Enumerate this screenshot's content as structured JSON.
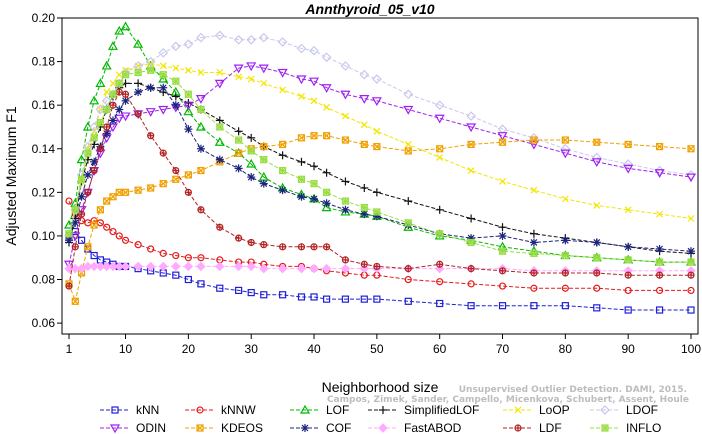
{
  "chart_data": {
    "type": "line",
    "title": "Annthyroid_05_v10",
    "xlabel": "Neighborhood size",
    "ylabel": "Adjusted Maximum F1",
    "xlim": [
      1,
      100
    ],
    "ylim": [
      0.055,
      0.2
    ],
    "x_ticks": [
      1,
      10,
      20,
      30,
      40,
      50,
      60,
      70,
      80,
      90,
      100
    ],
    "y_ticks": [
      "0.06",
      "0.08",
      "0.10",
      "0.12",
      "0.14",
      "0.16",
      "0.18",
      "0.20"
    ],
    "grid": false,
    "legend_position": "bottom",
    "credit": [
      "Unsupervised Outlier Detection. DAMI, 2015.",
      "Campos, Zimek, Sander, Campello, Micenkova, Schubert, Assent, Houle"
    ],
    "x": [
      1,
      2,
      3,
      4,
      5,
      6,
      7,
      8,
      9,
      10,
      12,
      14,
      16,
      18,
      20,
      22,
      25,
      28,
      30,
      32,
      35,
      38,
      40,
      42,
      45,
      48,
      50,
      55,
      60,
      65,
      70,
      75,
      80,
      85,
      90,
      95,
      100
    ],
    "series": [
      {
        "name": "kNN",
        "color": "#1f1fd6",
        "marker": "square",
        "values": [
          0.1,
          0.102,
          0.098,
          0.094,
          0.091,
          0.089,
          0.088,
          0.087,
          0.086,
          0.086,
          0.085,
          0.084,
          0.083,
          0.082,
          0.08,
          0.078,
          0.076,
          0.075,
          0.074,
          0.073,
          0.073,
          0.072,
          0.072,
          0.071,
          0.071,
          0.071,
          0.071,
          0.07,
          0.069,
          0.068,
          0.068,
          0.068,
          0.068,
          0.067,
          0.066,
          0.066,
          0.066
        ]
      },
      {
        "name": "kNNW",
        "color": "#e41a1c",
        "marker": "circle",
        "values": [
          0.116,
          0.11,
          0.107,
          0.106,
          0.107,
          0.106,
          0.104,
          0.102,
          0.1,
          0.098,
          0.096,
          0.094,
          0.092,
          0.091,
          0.09,
          0.09,
          0.089,
          0.088,
          0.088,
          0.087,
          0.086,
          0.086,
          0.085,
          0.084,
          0.083,
          0.082,
          0.082,
          0.08,
          0.079,
          0.078,
          0.077,
          0.076,
          0.076,
          0.076,
          0.075,
          0.075,
          0.075
        ]
      },
      {
        "name": "LOF",
        "color": "#00b800",
        "marker": "triangle-up",
        "values": [
          0.105,
          0.115,
          0.135,
          0.15,
          0.162,
          0.17,
          0.178,
          0.187,
          0.194,
          0.196,
          0.188,
          0.178,
          0.172,
          0.166,
          0.157,
          0.15,
          0.143,
          0.138,
          0.133,
          0.127,
          0.122,
          0.119,
          0.117,
          0.113,
          0.111,
          0.11,
          0.109,
          0.104,
          0.1,
          0.098,
          0.095,
          0.093,
          0.091,
          0.09,
          0.089,
          0.088,
          0.088
        ]
      },
      {
        "name": "SimplifiedLOF",
        "color": "#111111",
        "marker": "plus",
        "values": [
          0.097,
          0.108,
          0.125,
          0.135,
          0.142,
          0.15,
          0.158,
          0.164,
          0.168,
          0.17,
          0.17,
          0.168,
          0.166,
          0.164,
          0.161,
          0.158,
          0.153,
          0.148,
          0.145,
          0.141,
          0.137,
          0.134,
          0.132,
          0.129,
          0.125,
          0.122,
          0.12,
          0.116,
          0.112,
          0.108,
          0.104,
          0.101,
          0.099,
          0.097,
          0.095,
          0.093,
          0.092
        ]
      },
      {
        "name": "LoOP",
        "color": "#f2e600",
        "marker": "cross",
        "values": [
          0.1,
          0.112,
          0.125,
          0.14,
          0.148,
          0.158,
          0.166,
          0.17,
          0.174,
          0.176,
          0.178,
          0.179,
          0.178,
          0.177,
          0.176,
          0.175,
          0.175,
          0.173,
          0.172,
          0.17,
          0.167,
          0.164,
          0.162,
          0.159,
          0.155,
          0.151,
          0.148,
          0.142,
          0.136,
          0.13,
          0.125,
          0.121,
          0.117,
          0.114,
          0.112,
          0.11,
          0.108
        ]
      },
      {
        "name": "LDOF",
        "color": "#c8c8ee",
        "marker": "diamond",
        "values": [
          0.1,
          0.112,
          0.128,
          0.141,
          0.15,
          0.158,
          0.162,
          0.165,
          0.17,
          0.175,
          0.178,
          0.18,
          0.184,
          0.187,
          0.188,
          0.191,
          0.192,
          0.19,
          0.19,
          0.191,
          0.189,
          0.186,
          0.185,
          0.182,
          0.178,
          0.174,
          0.172,
          0.165,
          0.16,
          0.155,
          0.149,
          0.145,
          0.14,
          0.136,
          0.133,
          0.13,
          0.128
        ]
      },
      {
        "name": "ODIN",
        "color": "#a020f0",
        "marker": "triangle-down",
        "values": [
          0.087,
          0.1,
          0.112,
          0.12,
          0.13,
          0.138,
          0.145,
          0.15,
          0.154,
          0.155,
          0.156,
          0.157,
          0.158,
          0.159,
          0.16,
          0.163,
          0.17,
          0.177,
          0.178,
          0.177,
          0.175,
          0.172,
          0.171,
          0.168,
          0.165,
          0.163,
          0.162,
          0.158,
          0.154,
          0.15,
          0.146,
          0.142,
          0.138,
          0.134,
          0.131,
          0.129,
          0.127
        ]
      },
      {
        "name": "KDEOS",
        "color": "#f0a000",
        "marker": "square-x",
        "values": [
          0.078,
          0.07,
          0.083,
          0.095,
          0.105,
          0.112,
          0.116,
          0.118,
          0.12,
          0.12,
          0.121,
          0.122,
          0.124,
          0.126,
          0.128,
          0.13,
          0.134,
          0.138,
          0.14,
          0.141,
          0.142,
          0.145,
          0.146,
          0.146,
          0.144,
          0.142,
          0.141,
          0.139,
          0.14,
          0.142,
          0.143,
          0.144,
          0.144,
          0.143,
          0.142,
          0.141,
          0.14
        ]
      },
      {
        "name": "COF",
        "color": "#1a237e",
        "marker": "asterisk",
        "values": [
          0.098,
          0.106,
          0.118,
          0.128,
          0.134,
          0.141,
          0.147,
          0.153,
          0.158,
          0.162,
          0.166,
          0.168,
          0.168,
          0.16,
          0.149,
          0.14,
          0.135,
          0.131,
          0.127,
          0.124,
          0.121,
          0.118,
          0.117,
          0.115,
          0.112,
          0.11,
          0.109,
          0.105,
          0.101,
          0.099,
          0.1,
          0.097,
          0.098,
          0.097,
          0.095,
          0.094,
          0.093
        ]
      },
      {
        "name": "FastABOD",
        "color": "#ffaaff",
        "marker": "diamond-filled",
        "values": [
          0.085,
          0.085,
          0.085,
          0.086,
          0.086,
          0.086,
          0.086,
          0.086,
          0.086,
          0.086,
          0.086,
          0.086,
          0.086,
          0.086,
          0.086,
          0.086,
          0.086,
          0.086,
          0.086,
          0.085,
          0.085,
          0.085,
          0.085,
          0.085,
          0.085,
          0.085,
          0.085,
          0.085,
          0.085,
          0.085,
          0.085,
          0.084,
          0.084,
          0.084,
          0.084,
          0.084,
          0.084
        ]
      },
      {
        "name": "LDF",
        "color": "#b22222",
        "marker": "circle-plus",
        "values": [
          0.077,
          0.095,
          0.11,
          0.12,
          0.13,
          0.14,
          0.15,
          0.16,
          0.166,
          0.165,
          0.156,
          0.146,
          0.138,
          0.13,
          0.12,
          0.112,
          0.104,
          0.099,
          0.097,
          0.096,
          0.095,
          0.095,
          0.095,
          0.095,
          0.089,
          0.087,
          0.086,
          0.085,
          0.087,
          0.085,
          0.084,
          0.083,
          0.083,
          0.083,
          0.082,
          0.082,
          0.082
        ]
      },
      {
        "name": "INFLO",
        "color": "#99dd44",
        "marker": "square-star",
        "values": [
          0.101,
          0.112,
          0.126,
          0.138,
          0.145,
          0.152,
          0.158,
          0.165,
          0.17,
          0.174,
          0.175,
          0.176,
          0.174,
          0.171,
          0.165,
          0.158,
          0.15,
          0.144,
          0.139,
          0.135,
          0.13,
          0.126,
          0.124,
          0.12,
          0.116,
          0.113,
          0.111,
          0.106,
          0.101,
          0.097,
          0.093,
          0.092,
          0.091,
          0.09,
          0.089,
          0.088,
          0.088
        ]
      }
    ],
    "legend_rows": [
      [
        "kNN",
        "kNNW",
        "LOF",
        "SimplifiedLOF",
        "LoOP",
        "LDOF"
      ],
      [
        "ODIN",
        "KDEOS",
        "COF",
        "FastABOD",
        "LDF",
        "INFLO"
      ]
    ]
  }
}
